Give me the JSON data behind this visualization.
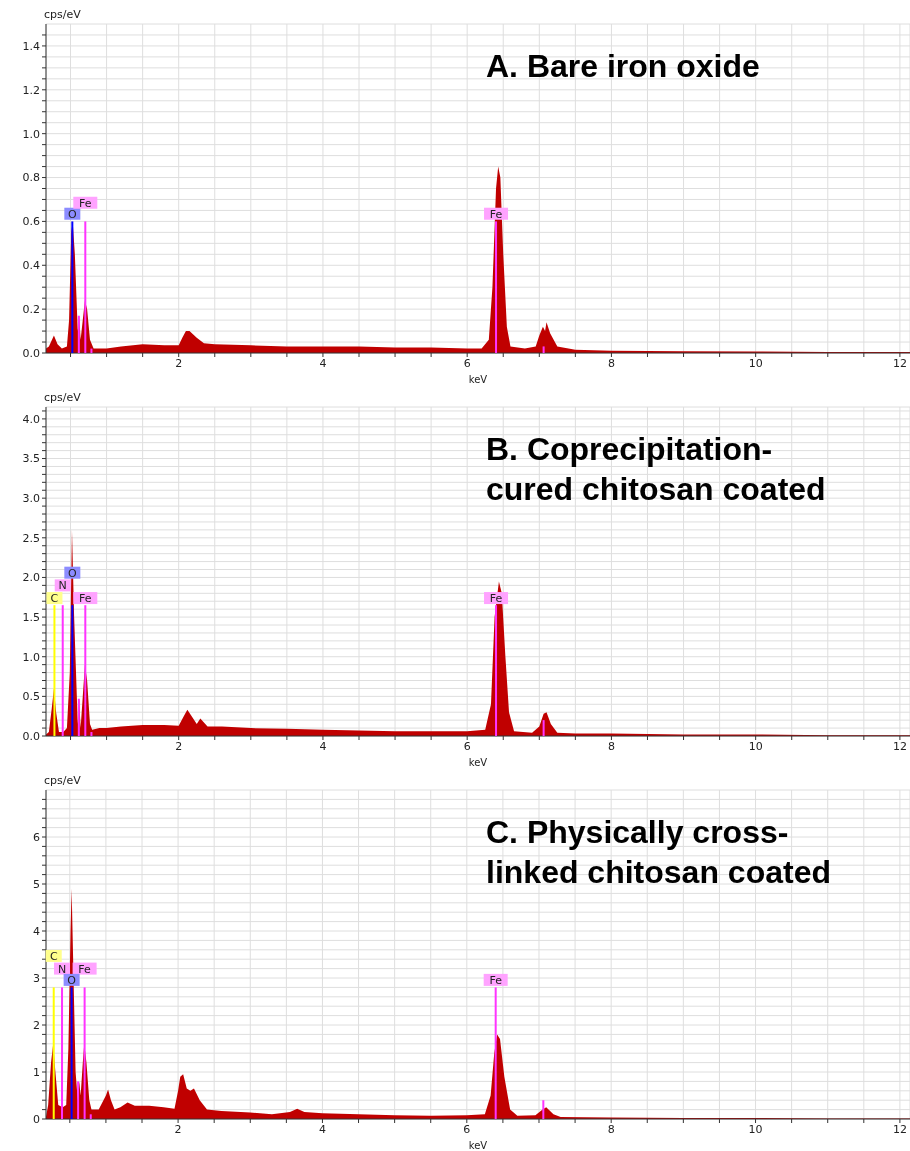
{
  "chart_data": [
    {
      "type": "area",
      "title": "A. Bare iron oxide",
      "xlabel": "keV",
      "ylabel": "cps/eV",
      "grid": true,
      "xlim": [
        0.16,
        12.14
      ],
      "xticks": [
        {
          "value": 0.5,
          "label": null
        },
        {
          "value": 1,
          "label": null
        },
        {
          "value": 1.5,
          "label": null
        },
        2,
        {
          "value": 2.5,
          "label": null
        },
        {
          "value": 3,
          "label": null
        },
        {
          "value": 3.5,
          "label": null
        },
        4,
        {
          "value": 4.5,
          "label": null
        },
        {
          "value": 5,
          "label": null
        },
        {
          "value": 5.5,
          "label": null
        },
        6,
        {
          "value": 6.5,
          "label": null
        },
        {
          "value": 7,
          "label": null
        },
        {
          "value": 7.5,
          "label": null
        },
        8,
        {
          "value": 8.5,
          "label": null
        },
        {
          "value": 9,
          "label": null
        },
        {
          "value": 9.5,
          "label": null
        },
        10,
        {
          "value": 10.5,
          "label": null
        },
        {
          "value": 11,
          "label": null
        },
        {
          "value": 11.5,
          "label": null
        },
        12
      ],
      "ylim": [
        0,
        1.5
      ],
      "yticks": [
        {
          "value": 0,
          "label": "0.0"
        },
        {
          "value": 0.05,
          "label": null
        },
        {
          "value": 0.1,
          "label": null
        },
        {
          "value": 0.15,
          "label": null
        },
        0.2,
        {
          "value": 0.25,
          "label": null
        },
        {
          "value": 0.3,
          "label": null
        },
        {
          "value": 0.35,
          "label": null
        },
        0.4,
        {
          "value": 0.45,
          "label": null
        },
        {
          "value": 0.5,
          "label": null
        },
        {
          "value": 0.55,
          "label": null
        },
        0.6,
        {
          "value": 0.65,
          "label": null
        },
        {
          "value": 0.7,
          "label": null
        },
        {
          "value": 0.75,
          "label": null
        },
        0.8,
        {
          "value": 0.85,
          "label": null
        },
        {
          "value": 0.9,
          "label": null
        },
        {
          "value": 0.95,
          "label": null
        },
        {
          "value": 1,
          "label": "1.0"
        },
        {
          "value": 1.05,
          "label": null
        },
        {
          "value": 1.1,
          "label": null
        },
        {
          "value": 1.15,
          "label": null
        },
        1.2,
        {
          "value": 1.25,
          "label": null
        },
        {
          "value": 1.3,
          "label": null
        },
        {
          "value": 1.35,
          "label": null
        },
        1.4,
        {
          "value": 1.45,
          "label": null
        }
      ],
      "series": [
        {
          "color": "#c00000",
          "x": [
            0.16,
            0.2,
            0.27,
            0.32,
            0.38,
            0.45,
            0.48,
            0.51,
            0.53,
            0.56,
            0.6,
            0.62,
            0.64,
            0.67,
            0.7,
            0.73,
            0.77,
            0.82,
            0.9,
            1.0,
            1.2,
            1.5,
            1.8,
            2.0,
            2.05,
            2.1,
            2.15,
            2.25,
            2.35,
            2.5,
            3.0,
            3.5,
            4.0,
            4.5,
            5.0,
            5.5,
            6.0,
            6.2,
            6.3,
            6.35,
            6.4,
            6.43,
            6.46,
            6.5,
            6.55,
            6.6,
            6.8,
            6.95,
            7.0,
            7.05,
            7.08,
            7.1,
            7.15,
            7.25,
            7.5,
            8,
            9,
            10,
            11,
            12.14
          ],
          "values": [
            0.02,
            0.03,
            0.08,
            0.04,
            0.02,
            0.03,
            0.15,
            0.55,
            0.6,
            0.45,
            0.1,
            0.17,
            0.06,
            0.15,
            0.24,
            0.2,
            0.06,
            0.02,
            0.02,
            0.02,
            0.03,
            0.04,
            0.035,
            0.035,
            0.07,
            0.1,
            0.1,
            0.07,
            0.045,
            0.04,
            0.035,
            0.03,
            0.03,
            0.03,
            0.025,
            0.025,
            0.02,
            0.02,
            0.06,
            0.3,
            0.75,
            0.85,
            0.8,
            0.45,
            0.12,
            0.03,
            0.02,
            0.03,
            0.08,
            0.12,
            0.1,
            0.14,
            0.09,
            0.03,
            0.015,
            0.01,
            0.008,
            0.007,
            0.005,
            0.005
          ]
        },
        {
          "type": "bar",
          "color": "#0000ff",
          "x": [
            0.525
          ],
          "values": [
            0.6
          ]
        },
        {
          "type": "bar",
          "color": "#ff33ff",
          "x": [
            0.615,
            0.705,
            0.79,
            6.4,
            7.06
          ],
          "values": [
            0.17,
            0.6,
            0.02,
            0.6,
            0.03
          ]
        }
      ],
      "annotations": [
        {
          "text": "O",
          "x": 0.525,
          "y": 0.635
        },
        {
          "text": "Fe",
          "x": 0.705,
          "y": 0.685
        },
        {
          "text": "Fe",
          "x": 6.4,
          "y": 0.635
        }
      ]
    },
    {
      "type": "area",
      "title": "B. Coprecipitation-cured chitosan coated",
      "xlabel": "keV",
      "ylabel": "cps/eV",
      "grid": true,
      "xlim": [
        0.16,
        12.14
      ],
      "xticks": [
        {
          "value": 0.5,
          "label": null
        },
        {
          "value": 1,
          "label": null
        },
        {
          "value": 1.5,
          "label": null
        },
        2,
        {
          "value": 2.5,
          "label": null
        },
        {
          "value": 3,
          "label": null
        },
        {
          "value": 3.5,
          "label": null
        },
        4,
        {
          "value": 4.5,
          "label": null
        },
        {
          "value": 5,
          "label": null
        },
        {
          "value": 5.5,
          "label": null
        },
        6,
        {
          "value": 6.5,
          "label": null
        },
        {
          "value": 7,
          "label": null
        },
        {
          "value": 7.5,
          "label": null
        },
        8,
        {
          "value": 8.5,
          "label": null
        },
        {
          "value": 9,
          "label": null
        },
        {
          "value": 9.5,
          "label": null
        },
        10,
        {
          "value": 10.5,
          "label": null
        },
        {
          "value": 11,
          "label": null
        },
        {
          "value": 11.5,
          "label": null
        },
        12
      ],
      "ylim": [
        0,
        4.15
      ],
      "yticks": [
        {
          "value": 0,
          "label": "0.0"
        },
        {
          "value": 0.1,
          "label": null
        },
        {
          "value": 0.2,
          "label": null
        },
        {
          "value": 0.3,
          "label": null
        },
        {
          "value": 0.4,
          "label": null
        },
        0.5,
        {
          "value": 0.6,
          "label": null
        },
        {
          "value": 0.7,
          "label": null
        },
        {
          "value": 0.8,
          "label": null
        },
        {
          "value": 0.9,
          "label": null
        },
        {
          "value": 1,
          "label": "1.0"
        },
        {
          "value": 1.1,
          "label": null
        },
        {
          "value": 1.2,
          "label": null
        },
        {
          "value": 1.3,
          "label": null
        },
        {
          "value": 1.4,
          "label": null
        },
        1.5,
        {
          "value": 1.6,
          "label": null
        },
        {
          "value": 1.7,
          "label": null
        },
        {
          "value": 1.8,
          "label": null
        },
        {
          "value": 1.9,
          "label": null
        },
        {
          "value": 2,
          "label": "2.0"
        },
        {
          "value": 2.1,
          "label": null
        },
        {
          "value": 2.2,
          "label": null
        },
        {
          "value": 2.3,
          "label": null
        },
        {
          "value": 2.4,
          "label": null
        },
        2.5,
        {
          "value": 2.6,
          "label": null
        },
        {
          "value": 2.7,
          "label": null
        },
        {
          "value": 2.8,
          "label": null
        },
        {
          "value": 2.9,
          "label": null
        },
        {
          "value": 3,
          "label": "3.0"
        },
        {
          "value": 3.1,
          "label": null
        },
        {
          "value": 3.2,
          "label": null
        },
        {
          "value": 3.3,
          "label": null
        },
        {
          "value": 3.4,
          "label": null
        },
        3.5,
        {
          "value": 3.6,
          "label": null
        },
        {
          "value": 3.7,
          "label": null
        },
        {
          "value": 3.8,
          "label": null
        },
        {
          "value": 3.9,
          "label": null
        },
        {
          "value": 4,
          "label": "4.0"
        },
        {
          "value": 4.1,
          "label": null
        }
      ],
      "series": [
        {
          "color": "#c00000",
          "x": [
            0.16,
            0.2,
            0.24,
            0.27,
            0.3,
            0.34,
            0.4,
            0.45,
            0.49,
            0.52,
            0.55,
            0.58,
            0.6,
            0.62,
            0.64,
            0.67,
            0.7,
            0.73,
            0.77,
            0.8,
            0.9,
            1.0,
            1.2,
            1.5,
            1.8,
            2.0,
            2.07,
            2.12,
            2.18,
            2.25,
            2.3,
            2.4,
            2.6,
            3.0,
            3.5,
            4.0,
            4.5,
            5,
            5.5,
            6.0,
            6.25,
            6.33,
            6.38,
            6.44,
            6.48,
            6.53,
            6.58,
            6.65,
            6.9,
            7.0,
            7.06,
            7.1,
            7.16,
            7.25,
            7.5,
            8,
            9,
            10,
            11,
            12.14
          ],
          "values": [
            0.02,
            0.05,
            0.35,
            0.6,
            0.3,
            0.05,
            0.05,
            0.1,
            0.8,
            2.6,
            1.5,
            0.7,
            0.15,
            0.47,
            0.1,
            0.5,
            0.9,
            0.7,
            0.15,
            0.08,
            0.1,
            0.1,
            0.12,
            0.14,
            0.14,
            0.13,
            0.25,
            0.33,
            0.25,
            0.15,
            0.22,
            0.12,
            0.12,
            0.1,
            0.09,
            0.08,
            0.07,
            0.06,
            0.06,
            0.06,
            0.08,
            0.4,
            1.5,
            1.95,
            1.8,
            1.0,
            0.3,
            0.06,
            0.04,
            0.12,
            0.28,
            0.3,
            0.15,
            0.04,
            0.03,
            0.03,
            0.02,
            0.02,
            0.01,
            0.01
          ]
        },
        {
          "type": "bar",
          "color": "#ffff00",
          "x": [
            0.277
          ],
          "values": [
            1.65
          ]
        },
        {
          "type": "bar",
          "color": "#ff33ff",
          "x": [
            0.392
          ],
          "values": [
            1.65
          ]
        },
        {
          "type": "bar",
          "color": "#0000ff",
          "x": [
            0.525
          ],
          "values": [
            1.65
          ]
        },
        {
          "type": "bar",
          "color": "#ff33ff",
          "x": [
            0.615,
            0.705,
            0.79,
            6.4,
            7.06
          ],
          "values": [
            0.47,
            1.65,
            0.05,
            1.65,
            0.2
          ]
        }
      ],
      "annotations": [
        {
          "text": "C",
          "x": 0.277,
          "y": 1.74
        },
        {
          "text": "N",
          "x": 0.392,
          "y": 1.9
        },
        {
          "text": "O",
          "x": 0.525,
          "y": 2.06
        },
        {
          "text": "Fe",
          "x": 0.705,
          "y": 1.74
        },
        {
          "text": "Fe",
          "x": 6.4,
          "y": 1.74
        }
      ]
    },
    {
      "type": "area",
      "title": "C. Physically cross-linked chitosan coated",
      "xlabel": "keV",
      "ylabel": "cps/eV",
      "grid": true,
      "xlim": [
        0.17,
        12.14
      ],
      "xticks": [
        {
          "value": 0.5,
          "label": null
        },
        {
          "value": 1,
          "label": null
        },
        {
          "value": 1.5,
          "label": null
        },
        2,
        {
          "value": 2.5,
          "label": null
        },
        {
          "value": 3,
          "label": null
        },
        {
          "value": 3.5,
          "label": null
        },
        4,
        {
          "value": 4.5,
          "label": null
        },
        {
          "value": 5,
          "label": null
        },
        {
          "value": 5.5,
          "label": null
        },
        6,
        {
          "value": 6.5,
          "label": null
        },
        {
          "value": 7,
          "label": null
        },
        {
          "value": 7.5,
          "label": null
        },
        8,
        {
          "value": 8.5,
          "label": null
        },
        {
          "value": 9,
          "label": null
        },
        {
          "value": 9.5,
          "label": null
        },
        10,
        {
          "value": 10.5,
          "label": null
        },
        {
          "value": 11,
          "label": null
        },
        {
          "value": 11.5,
          "label": null
        },
        12
      ],
      "ylim": [
        0,
        7
      ],
      "yticks": [
        0,
        {
          "value": 0.2,
          "label": null
        },
        {
          "value": 0.4,
          "label": null
        },
        {
          "value": 0.6,
          "label": null
        },
        {
          "value": 0.8,
          "label": null
        },
        1,
        {
          "value": 1.2,
          "label": null
        },
        {
          "value": 1.4,
          "label": null
        },
        {
          "value": 1.6,
          "label": null
        },
        {
          "value": 1.8,
          "label": null
        },
        2,
        {
          "value": 2.2,
          "label": null
        },
        {
          "value": 2.4,
          "label": null
        },
        {
          "value": 2.6,
          "label": null
        },
        {
          "value": 2.8,
          "label": null
        },
        3,
        {
          "value": 3.2,
          "label": null
        },
        {
          "value": 3.4,
          "label": null
        },
        {
          "value": 3.6,
          "label": null
        },
        {
          "value": 3.8,
          "label": null
        },
        4,
        {
          "value": 4.2,
          "label": null
        },
        {
          "value": 4.4,
          "label": null
        },
        {
          "value": 4.6,
          "label": null
        },
        {
          "value": 4.8,
          "label": null
        },
        5,
        {
          "value": 5.2,
          "label": null
        },
        {
          "value": 5.4,
          "label": null
        },
        {
          "value": 5.6,
          "label": null
        },
        {
          "value": 5.8,
          "label": null
        },
        6,
        {
          "value": 6.2,
          "label": null
        },
        {
          "value": 6.4,
          "label": null
        },
        {
          "value": 6.6,
          "label": null
        },
        {
          "value": 6.8,
          "label": null
        }
      ],
      "series": [
        {
          "color": "#c00000",
          "x": [
            0.17,
            0.2,
            0.24,
            0.27,
            0.3,
            0.34,
            0.4,
            0.45,
            0.48,
            0.51,
            0.525,
            0.56,
            0.58,
            0.61,
            0.63,
            0.65,
            0.68,
            0.7,
            0.73,
            0.77,
            0.8,
            0.9,
            0.95,
            1.0,
            1.03,
            1.07,
            1.12,
            1.2,
            1.3,
            1.4,
            1.6,
            1.8,
            1.95,
            2.0,
            2.03,
            2.07,
            2.12,
            2.17,
            2.22,
            2.3,
            2.4,
            2.6,
            3.0,
            3.3,
            3.55,
            3.65,
            3.75,
            4.0,
            4.5,
            5,
            5.5,
            6.0,
            6.25,
            6.33,
            6.38,
            6.42,
            6.46,
            6.52,
            6.6,
            6.7,
            6.95,
            7.05,
            7.1,
            7.2,
            7.3,
            8,
            9,
            10,
            11,
            12.14
          ],
          "values": [
            0.05,
            0.3,
            1.2,
            1.6,
            1.0,
            0.3,
            0.25,
            0.3,
            1.5,
            4.0,
            4.9,
            2.4,
            1.0,
            0.4,
            0.8,
            0.5,
            1.2,
            1.6,
            1.2,
            0.4,
            0.2,
            0.2,
            0.35,
            0.5,
            0.63,
            0.4,
            0.2,
            0.25,
            0.35,
            0.28,
            0.28,
            0.25,
            0.22,
            0.6,
            0.9,
            0.95,
            0.65,
            0.6,
            0.65,
            0.4,
            0.2,
            0.17,
            0.14,
            0.1,
            0.15,
            0.22,
            0.15,
            0.12,
            0.1,
            0.08,
            0.07,
            0.08,
            0.1,
            0.5,
            1.4,
            1.8,
            1.7,
            0.9,
            0.2,
            0.07,
            0.08,
            0.2,
            0.25,
            0.1,
            0.04,
            0.03,
            0.02,
            0.02,
            0.01,
            0.01
          ]
        },
        {
          "type": "bar",
          "color": "#ffff00",
          "x": [
            0.277
          ],
          "values": [
            2.8
          ]
        },
        {
          "type": "bar",
          "color": "#ff33ff",
          "x": [
            0.392
          ],
          "values": [
            2.8
          ]
        },
        {
          "type": "bar",
          "color": "#0000ff",
          "x": [
            0.525
          ],
          "values": [
            2.8
          ]
        },
        {
          "type": "bar",
          "color": "#ff33ff",
          "x": [
            0.615,
            0.705,
            0.79,
            6.4,
            7.06
          ],
          "values": [
            0.8,
            2.8,
            0.1,
            2.8,
            0.4
          ]
        }
      ],
      "annotations": [
        {
          "text": "C",
          "x": 0.277,
          "y": 3.47
        },
        {
          "text": "N",
          "x": 0.392,
          "y": 3.2
        },
        {
          "text": "Fe",
          "x": 0.705,
          "y": 3.2
        },
        {
          "text": "O",
          "x": 0.525,
          "y": 2.96
        },
        {
          "text": "Fe",
          "x": 6.4,
          "y": 2.96
        }
      ]
    }
  ]
}
